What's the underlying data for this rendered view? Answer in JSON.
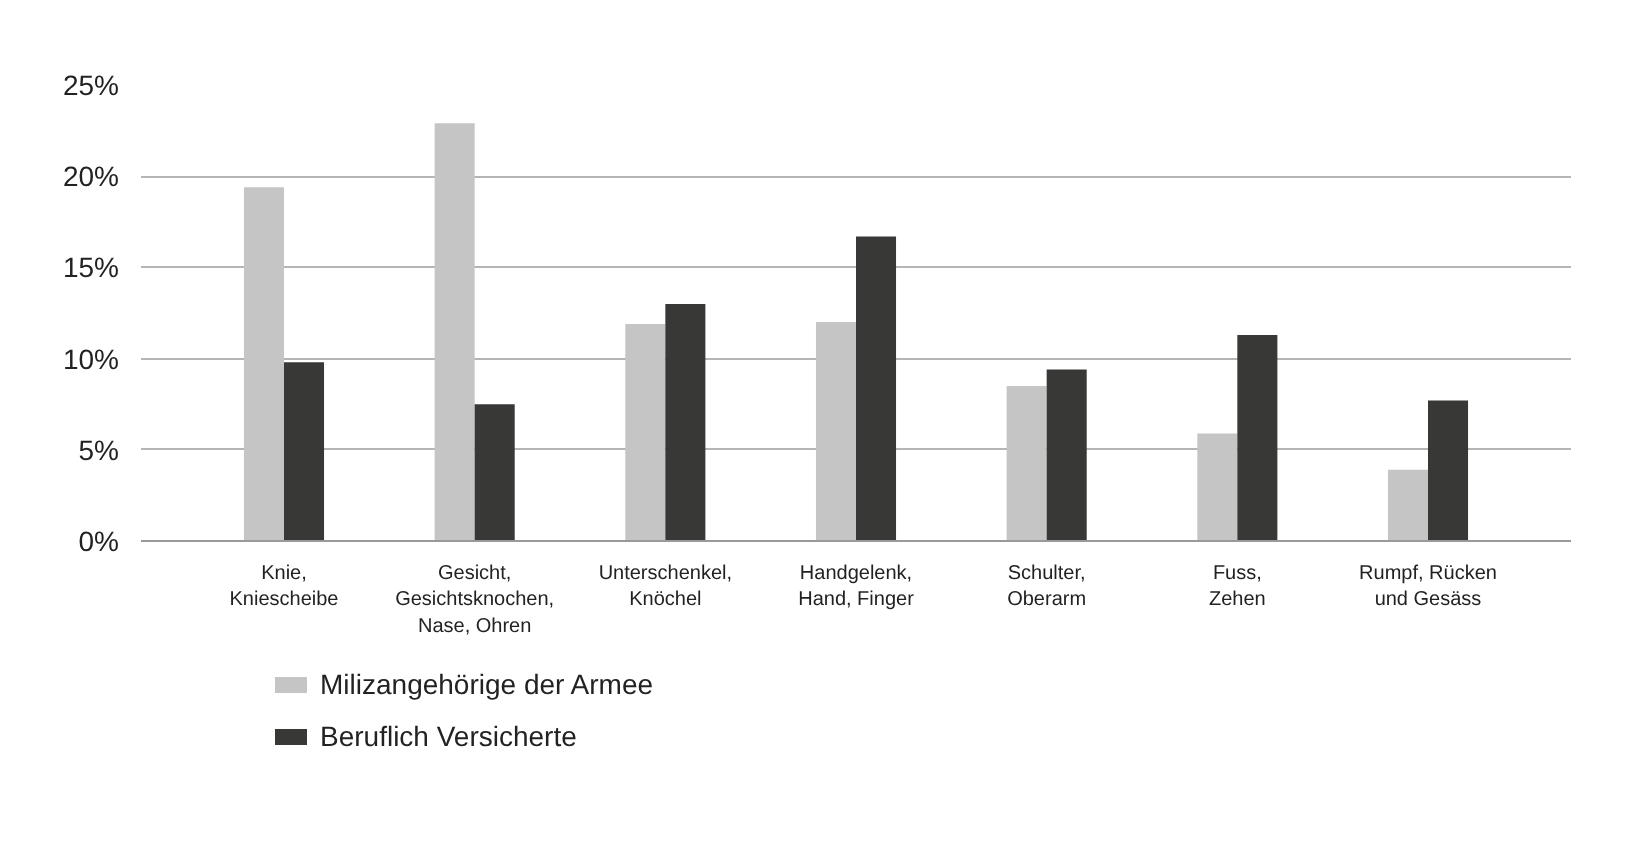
{
  "chart_data": {
    "type": "bar",
    "categories": [
      "Knie,\nKniescheibe",
      "Gesicht,\nGesichtsknochen,\nNase, Ohren",
      "Unterschenkel,\nKnöchel",
      "Handgelenk,\nHand, Finger",
      "Schulter,\nOberarm",
      "Fuss,\nZehen",
      "Rumpf, Rücken\nund Gesäss"
    ],
    "series": [
      {
        "name": "Milizangehörige der Armee",
        "color": "#c4c5c4",
        "values": [
          19.4,
          22.9,
          11.9,
          12.0,
          8.5,
          5.9,
          3.9
        ]
      },
      {
        "name": "Beruflich Versicherte",
        "color": "#383837",
        "values": [
          9.8,
          7.5,
          13.0,
          16.7,
          9.4,
          11.3,
          7.7
        ]
      }
    ],
    "ylim": [
      0,
      25
    ],
    "yticks": [
      {
        "value": 0,
        "label": "0%"
      },
      {
        "value": 5,
        "label": "5%"
      },
      {
        "value": 10,
        "label": "10%"
      },
      {
        "value": 15,
        "label": "15%"
      },
      {
        "value": 20,
        "label": "20%"
      },
      {
        "value": 25,
        "label": "25%"
      }
    ],
    "grid": "y",
    "legend": "bottom left"
  }
}
